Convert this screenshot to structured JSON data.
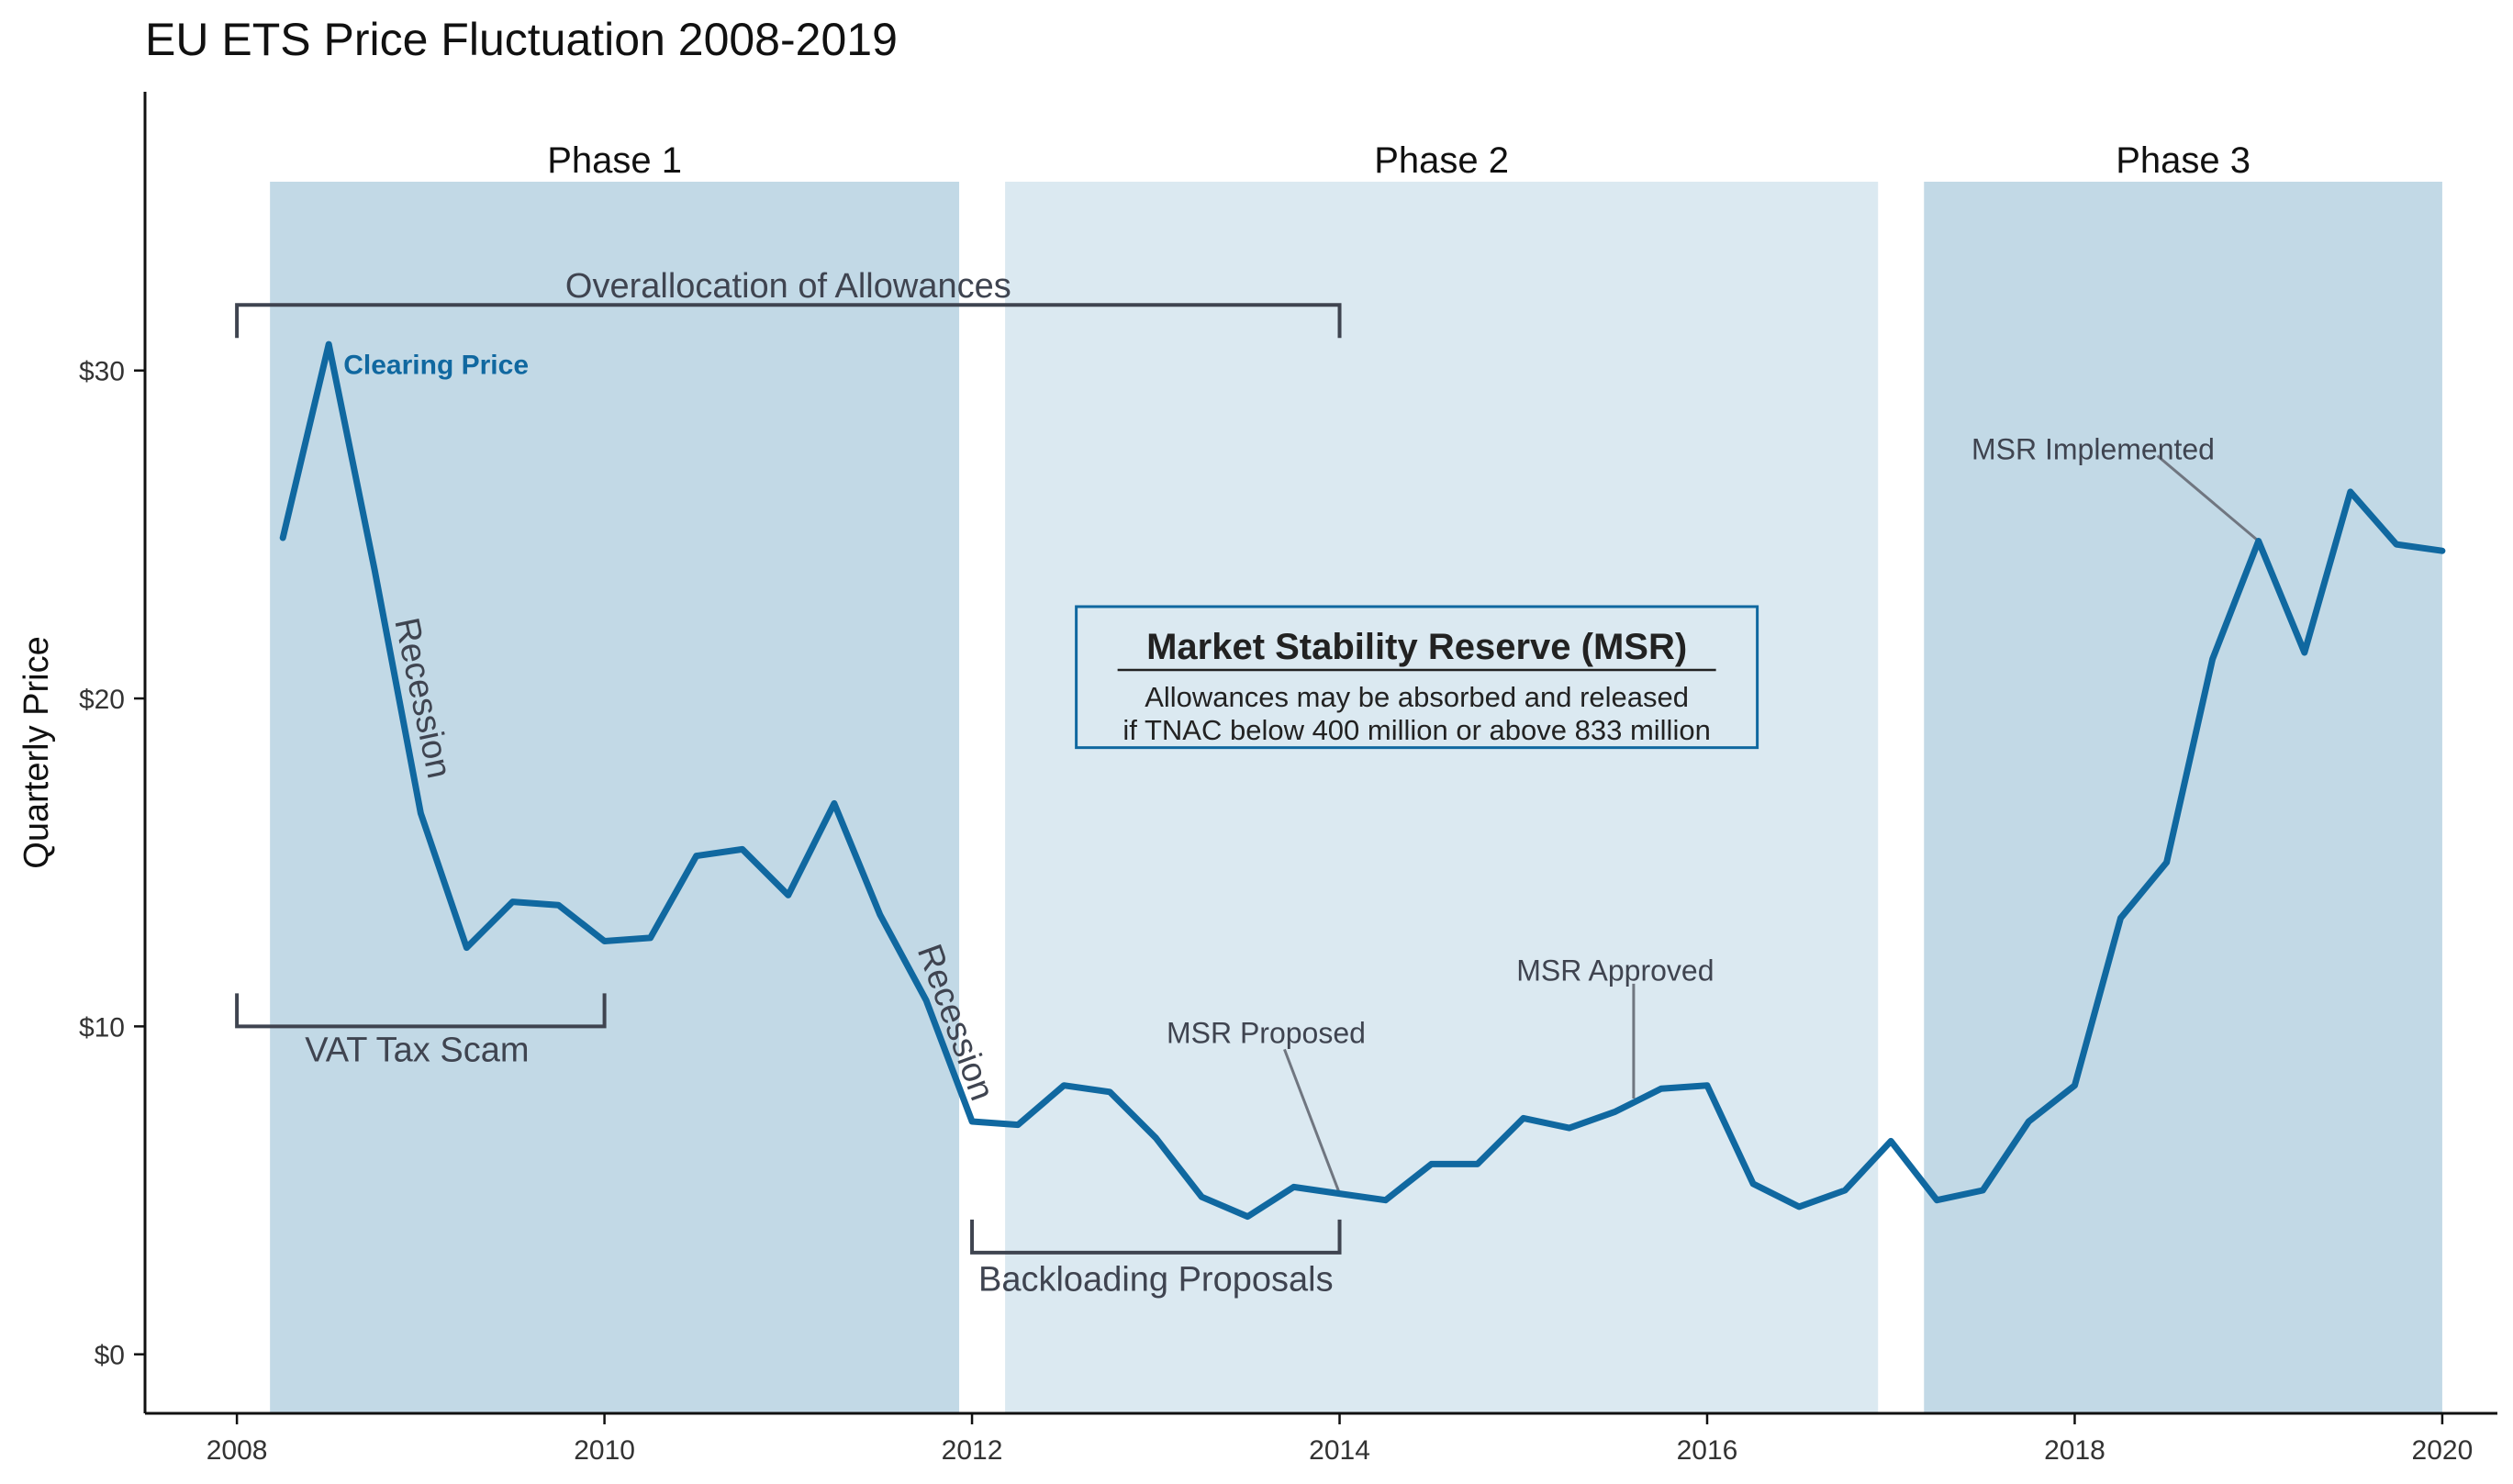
{
  "chart_data": {
    "type": "line",
    "title": "EU ETS Price Fluctuation 2008-2019",
    "xlabel": "",
    "ylabel": "Quarterly Price",
    "xlim": [
      2007.5,
      2020.3
    ],
    "ylim": [
      -1.8,
      38.5
    ],
    "x_ticks": [
      2008,
      2010,
      2012,
      2014,
      2016,
      2018,
      2020
    ],
    "x_tick_labels": [
      "2008",
      "2010",
      "2012",
      "2014",
      "2016",
      "2018",
      "2020"
    ],
    "y_ticks": [
      0,
      10,
      20,
      30
    ],
    "y_tick_labels": [
      "$0",
      "$10",
      "$20",
      "$30"
    ],
    "grid": false,
    "colors": {
      "line": "#1068a0",
      "phase_dark": "#c2d9e6",
      "phase_light": "#dbe9f1",
      "annotation": "#3f4450",
      "leader": "#707680",
      "msr_border": "#1068a0"
    },
    "phases": [
      {
        "label": "Phase 1",
        "start": 2008.18,
        "end": 2011.93,
        "shade": "dark"
      },
      {
        "label": "Phase 2",
        "start": 2012.18,
        "end": 2016.93,
        "shade": "light"
      },
      {
        "label": "Phase 3",
        "start": 2017.18,
        "end": 2020.0,
        "shade": "dark"
      }
    ],
    "series": [
      {
        "name": "Clearing Price",
        "x": [
          2008.25,
          2008.5,
          2008.75,
          2009.0,
          2009.25,
          2009.5,
          2009.75,
          2010.0,
          2010.25,
          2010.5,
          2010.75,
          2011.0,
          2011.25,
          2011.5,
          2011.75,
          2012.0,
          2012.25,
          2012.5,
          2012.75,
          2013.0,
          2013.25,
          2013.5,
          2013.75,
          2014.0,
          2014.25,
          2014.5,
          2014.75,
          2015.0,
          2015.25,
          2015.5,
          2015.75,
          2016.0,
          2016.25,
          2016.5,
          2016.75,
          2017.0,
          2017.25,
          2017.5,
          2017.75,
          2018.0,
          2018.25,
          2018.5,
          2018.75,
          2019.0,
          2019.25,
          2019.5,
          2019.75,
          2020.0
        ],
        "values": [
          24.9,
          30.8,
          23.9,
          16.5,
          12.4,
          13.8,
          13.7,
          12.6,
          12.7,
          15.2,
          15.4,
          14.0,
          16.8,
          13.4,
          10.8,
          7.1,
          7.0,
          8.2,
          8.0,
          6.6,
          4.8,
          4.2,
          5.1,
          4.9,
          4.7,
          5.8,
          5.8,
          7.2,
          6.9,
          7.4,
          8.1,
          8.2,
          5.2,
          4.5,
          5.0,
          6.5,
          4.7,
          5.0,
          7.1,
          8.2,
          13.3,
          15.0,
          21.2,
          24.8,
          21.4,
          26.3,
          24.7,
          24.5
        ]
      }
    ],
    "series_label": {
      "text": "Clearing Price",
      "x": 2008.58,
      "y": 30.2
    },
    "brackets": [
      {
        "label": "Overallocation of Allowances",
        "x_start": 2008.0,
        "x_end": 2014.0,
        "y": 32.0,
        "direction": "down",
        "label_x": 2011.0,
        "label_y": 32.6
      },
      {
        "label": "VAT Tax Scam",
        "x_start": 2008.0,
        "x_end": 2010.0,
        "y": 10.0,
        "direction": "up",
        "label_x": 2008.98,
        "label_y": 9.3
      },
      {
        "label": "Backloading Proposals",
        "x_start": 2012.0,
        "x_end": 2014.0,
        "y": 3.1,
        "direction": "up",
        "label_x": 2013.0,
        "label_y": 2.3
      }
    ],
    "rotated_labels": [
      {
        "label": "Recession",
        "x": 2009.0,
        "y": 20.0,
        "angle": 78
      },
      {
        "label": "Recession",
        "x": 2011.9,
        "y": 10.1,
        "angle": 70
      }
    ],
    "callouts": [
      {
        "label": "MSR Proposed",
        "text_x": 2013.6,
        "text_y": 9.8,
        "from_x": 2013.7,
        "from_y": 9.3,
        "to_x": 2014.0,
        "to_y": 4.9
      },
      {
        "label": "MSR Approved",
        "text_x": 2015.5,
        "text_y": 11.7,
        "from_x": 2015.6,
        "from_y": 11.3,
        "to_x": 2015.6,
        "to_y": 7.8
      },
      {
        "label": "MSR Implemented",
        "text_x": 2018.1,
        "text_y": 27.6,
        "from_x": 2018.45,
        "from_y": 27.4,
        "to_x": 2019.0,
        "to_y": 24.8
      }
    ],
    "msr_box": {
      "title": "Market Stability Reserve (MSR)",
      "line1": "Allowances may be absorbed and released",
      "line2": "if TNAC below 400 million or above 833 million",
      "center_x": 2014.42,
      "y_top": 22.8,
      "y_bottom": 18.5
    }
  }
}
